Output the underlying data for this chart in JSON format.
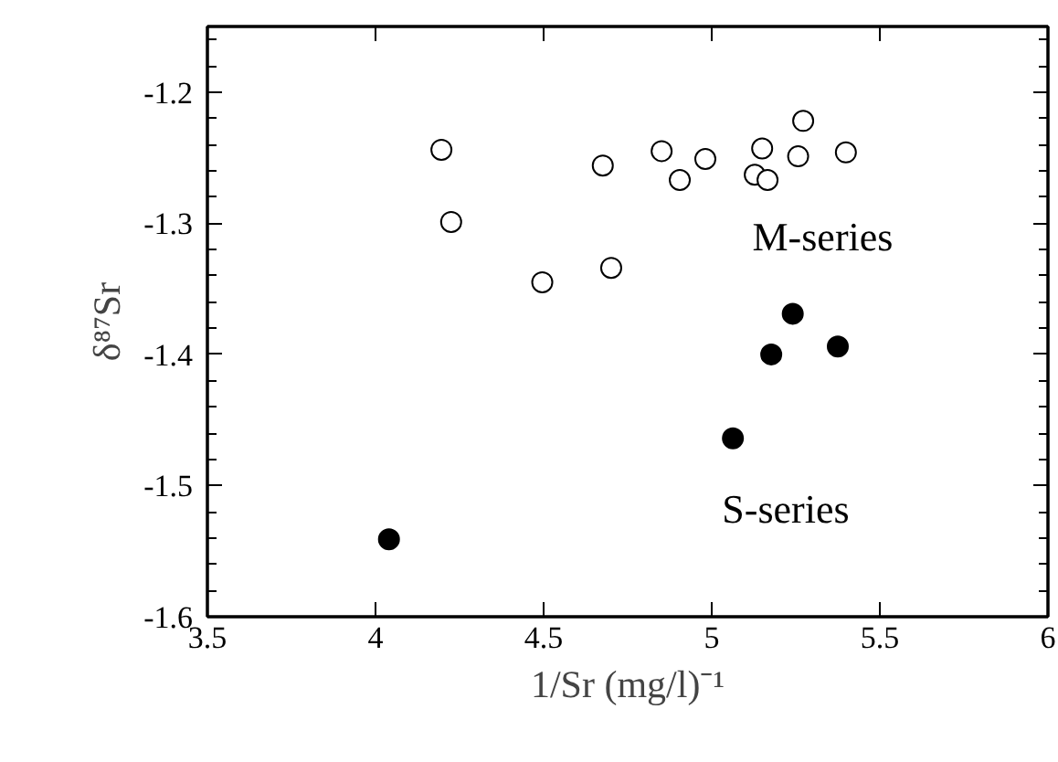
{
  "chart_data": {
    "type": "scatter",
    "xlabel": "1/Sr (mg/l)⁻¹",
    "ylabel": "δ⁸⁷Sr",
    "series": [
      {
        "name": "M-series",
        "color": "#ffffff",
        "x": [
          4.196,
          4.225,
          4.496,
          4.676,
          4.701,
          4.851,
          4.905,
          4.981,
          5.128,
          5.15,
          5.166,
          5.257,
          5.272,
          5.399
        ],
        "values": [
          -1.244,
          -1.299,
          -1.345,
          -1.256,
          -1.334,
          -1.245,
          -1.267,
          -1.251,
          -1.263,
          -1.243,
          -1.267,
          -1.249,
          -1.222,
          -1.246
        ]
      },
      {
        "name": "S-series",
        "color": "#000000",
        "x": [
          5.241,
          5.177,
          5.375,
          5.063,
          4.04
        ],
        "values": [
          -1.369,
          -1.4,
          -1.394,
          -1.464,
          -1.541
        ]
      }
    ],
    "xlim": [
      3.5,
      6
    ],
    "ylim": [
      -1.6,
      -1.15
    ],
    "xticks": [
      3.5,
      4,
      4.5,
      5,
      5.5,
      6
    ],
    "yticks": [
      {
        "value": -1.6,
        "label": "-1.6"
      },
      {
        "value": -1.5,
        "label": "-1.5"
      },
      {
        "value": -1.4,
        "label": "-1.4"
      },
      {
        "value": -1.3,
        "label": "-1.3"
      },
      {
        "value": -1.2,
        "label": "-1.2"
      }
    ],
    "marker": "circle",
    "grid": false
  }
}
